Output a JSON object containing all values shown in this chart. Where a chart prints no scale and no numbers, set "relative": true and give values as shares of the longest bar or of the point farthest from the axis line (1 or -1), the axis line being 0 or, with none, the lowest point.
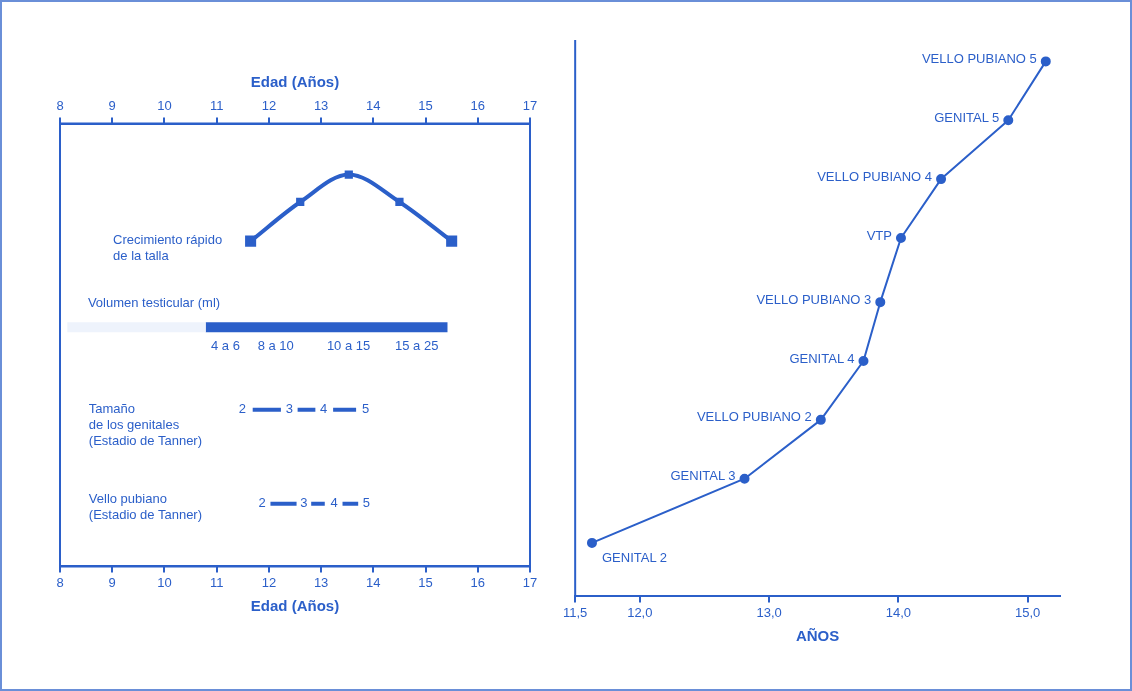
{
  "chart_data": [
    {
      "type": "line",
      "relative": true,
      "xlabel": "Edad (Años)",
      "x2label": "Edad (Años)",
      "xlim": [
        8,
        17
      ],
      "xticks": [
        8,
        9,
        10,
        11,
        12,
        13,
        14,
        15,
        16,
        17
      ],
      "x2lim": [
        8,
        17
      ],
      "x2ticks": [
        8,
        9,
        10,
        11,
        12,
        13,
        14,
        15,
        16,
        17
      ],
      "tick_labels": "x",
      "series": [
        {
          "color": "#2b5fc9",
          "marker": "square",
          "x": [
            11.65,
            12.6,
            13.53,
            14.5,
            15.5
          ],
          "values": [
            0.83,
            0.93,
            1.0,
            0.93,
            0.83
          ]
        },
        {
          "color": "#eef3fc",
          "marker": "none",
          "x": [
            8.14,
            10.79
          ],
          "values": [
            0.61,
            0.61
          ]
        },
        {
          "color": "#2b5fc9",
          "marker": "none",
          "x": [
            10.79,
            15.42
          ],
          "values": [
            0.61,
            0.61
          ]
        },
        {
          "color": "#2b5fc9",
          "marker": "none",
          "x": [
            11.69,
            12.23,
            12.4,
            12.55,
            12.89,
            13.05,
            13.23,
            13.67
          ],
          "values": [
            0.4,
            0.4,
            null,
            0.4,
            0.4,
            null,
            0.4,
            0.4
          ]
        },
        {
          "color": "#2b5fc9",
          "marker": "none",
          "x": [
            12.03,
            12.53,
            12.67,
            12.81,
            13.07,
            13.25,
            13.41,
            13.71
          ],
          "values": [
            0.16,
            0.16,
            null,
            0.16,
            0.16,
            null,
            0.16,
            0.16
          ]
        }
      ],
      "annotations": [
        "Crecimiento rápido\nde la talla",
        "Volumen testicular (ml)",
        "4 a 6",
        "8 a 10",
        "10 a 15",
        "15 a 25",
        "Tamaño\nde los genitales\n(Estadio de Tanner)",
        "2",
        "3",
        "4",
        "5",
        "Vello pubiano\n(Estadio de Tanner)",
        "2",
        "3",
        "4",
        "5"
      ]
    },
    {
      "type": "line",
      "relative": true,
      "xlabel": "AÑOS",
      "xlim": [
        11.5,
        15.25
      ],
      "xticks": [
        {
          "value": 11.5,
          "label": "11,5"
        },
        {
          "value": 12,
          "label": "12,0"
        },
        {
          "value": 13,
          "label": "13,0"
        },
        {
          "value": 14,
          "label": "14,0"
        },
        {
          "value": 15,
          "label": "15,0"
        }
      ],
      "marker": "circle",
      "series": [
        {
          "color": "#2b5fc9",
          "x": [
            11.63,
            12.81,
            13.4,
            13.73,
            13.86,
            14.02,
            14.33,
            14.85,
            15.14
          ],
          "values": [
            0.1,
            0.22,
            0.33,
            0.44,
            0.55,
            0.67,
            0.78,
            0.89,
            1.0
          ]
        }
      ],
      "annotations": [
        {
          "text": "GENITAL 2",
          "x": 11.63,
          "y": 0.1
        },
        {
          "text": "GENITAL 3",
          "x": 12.81,
          "y": 0.22
        },
        {
          "text": "VELLO PUBIANO 2",
          "x": 13.4,
          "y": 0.33
        },
        {
          "text": "GENITAL 4",
          "x": 13.73,
          "y": 0.44
        },
        {
          "text": "VELLO PUBIANO 3",
          "x": 13.86,
          "y": 0.55
        },
        {
          "text": "VTP",
          "x": 14.02,
          "y": 0.67
        },
        {
          "text": "VELLO PUBIANO 4",
          "x": 14.33,
          "y": 0.78
        },
        {
          "text": "GENITAL 5",
          "x": 14.85,
          "y": 0.89
        },
        {
          "text": "VELLO PUBIANO 5",
          "x": 15.14,
          "y": 1.0
        }
      ]
    }
  ]
}
